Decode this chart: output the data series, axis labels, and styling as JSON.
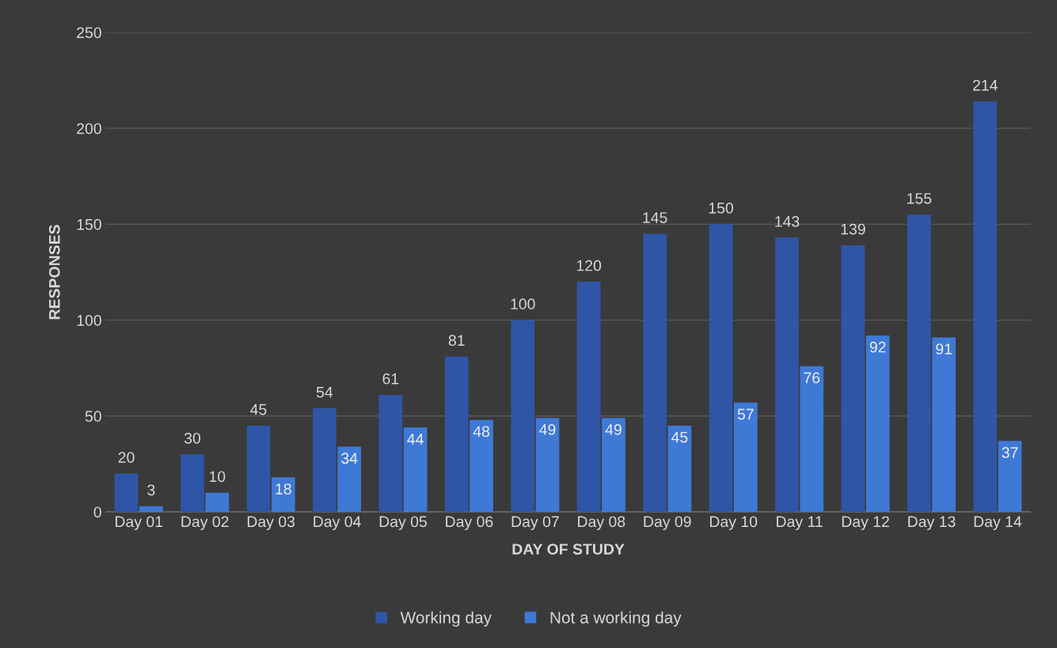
{
  "chart_data": {
    "type": "bar",
    "xlabel": "DAY OF STUDY",
    "ylabel": "RESPONSES",
    "categories": [
      "Day 01",
      "Day 02",
      "Day 03",
      "Day 04",
      "Day 05",
      "Day 06",
      "Day 07",
      "Day 08",
      "Day 09",
      "Day 10",
      "Day 11",
      "Day 12",
      "Day 13",
      "Day 14"
    ],
    "series": [
      {
        "name": "Working day",
        "color": "#2f56a6",
        "values": [
          20,
          30,
          45,
          54,
          61,
          81,
          100,
          120,
          145,
          150,
          143,
          139,
          155,
          214
        ]
      },
      {
        "name": "Not a working day",
        "color": "#3f79d6",
        "values": [
          3,
          10,
          18,
          34,
          44,
          48,
          49,
          49,
          45,
          57,
          76,
          92,
          91,
          37
        ]
      }
    ],
    "ylim": [
      0,
      250
    ],
    "yticks": [
      0,
      50,
      100,
      150,
      200,
      250
    ],
    "grid": "y",
    "legend": "bottom",
    "data_labels": true
  }
}
